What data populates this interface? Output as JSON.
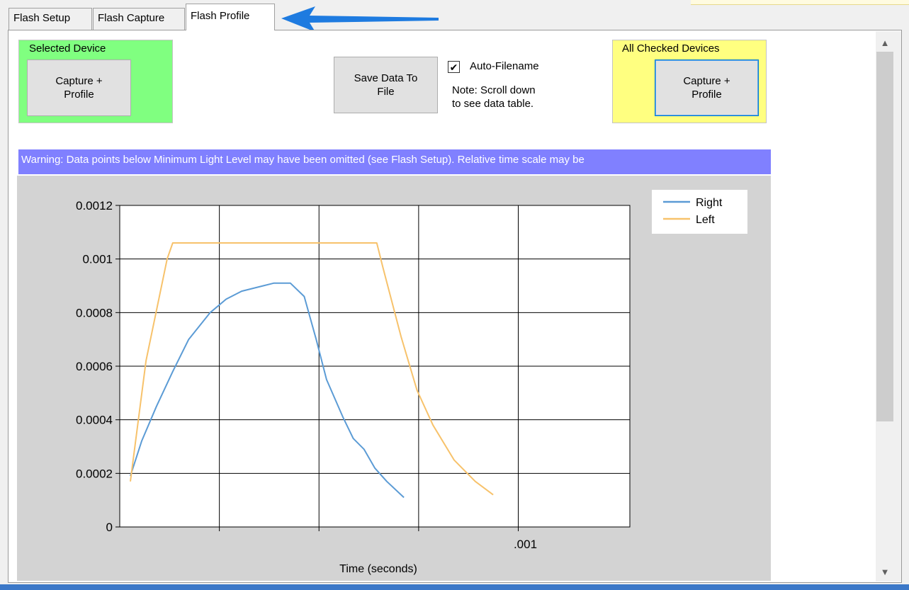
{
  "tabs": [
    {
      "label": "Flash Setup",
      "active": false
    },
    {
      "label": "Flash Capture",
      "active": false
    },
    {
      "label": "Flash Profile",
      "active": true
    }
  ],
  "selected_device": {
    "group_label": "Selected Device",
    "button_label": "Capture +\nProfile"
  },
  "save": {
    "button_label": "Save Data To\nFile"
  },
  "auto_filename": {
    "checked": true,
    "label": "Auto-Filename",
    "note": "Note: Scroll down\nto see data table."
  },
  "all_checked": {
    "group_label": "All Checked Devices",
    "button_label": "Capture +\nProfile"
  },
  "warning_text": "Warning: Data points below Minimum Light Level may have been omitted (see Flash Setup).  Relative time scale may be",
  "colors": {
    "selected_group": "#80ff80",
    "all_checked_group": "#ffff80",
    "warning_bar": "#8080ff",
    "chart_background": "#d3d3d3",
    "arrow": "#1e7be0"
  },
  "chart_data": {
    "type": "line",
    "title": "",
    "xlabel": "Time (seconds)",
    "ylabel": "",
    "xlim": [
      0,
      0.00128
    ],
    "ylim": [
      0,
      0.0012
    ],
    "ytick_labels": [
      "0",
      "0.0002",
      "0.0004",
      "0.0006",
      "0.0008",
      "0.001",
      "0.0012"
    ],
    "yticks": [
      0,
      0.0002,
      0.0004,
      0.0006,
      0.0008,
      0.001,
      0.0012
    ],
    "xticks": [
      0.00025,
      0.0005,
      0.00075,
      0.001
    ],
    "xtick_labels": [
      "",
      "",
      "",
      ".001"
    ],
    "grid": true,
    "legend": "top-right",
    "series": [
      {
        "name": "Right",
        "color": "#5b9bd5",
        "x": [
          2.66e-05,
          5.5e-05,
          9.2e-05,
          0.000133,
          0.000173,
          0.000227,
          0.000267,
          0.000306,
          0.00036,
          0.000387,
          0.000428,
          0.000463,
          0.000493,
          0.000519,
          0.00056,
          0.000586,
          0.000613,
          0.00064,
          0.00067,
          0.000713
        ],
        "y": [
          0.00019,
          0.00032,
          0.00045,
          0.00058,
          0.0007,
          0.0008,
          0.00085,
          0.00088,
          0.0009,
          0.00091,
          0.00091,
          0.00086,
          0.0007,
          0.00055,
          0.00041,
          0.00033,
          0.00029,
          0.00022,
          0.00017,
          0.00011
        ]
      },
      {
        "name": "Left",
        "color": "#f7c26b",
        "x": [
          2.66e-05,
          6.6e-05,
          0.000119,
          0.000133,
          0.0002,
          0.000333,
          0.000466,
          0.000598,
          0.000645,
          0.00066,
          0.000706,
          0.000746,
          0.000786,
          0.000839,
          0.000892,
          0.000937
        ],
        "y": [
          0.00017,
          0.00062,
          0.001,
          0.00106,
          0.00106,
          0.00106,
          0.00106,
          0.00106,
          0.00106,
          0.00097,
          0.00071,
          0.00051,
          0.00038,
          0.00025,
          0.00017,
          0.00012
        ]
      }
    ]
  }
}
